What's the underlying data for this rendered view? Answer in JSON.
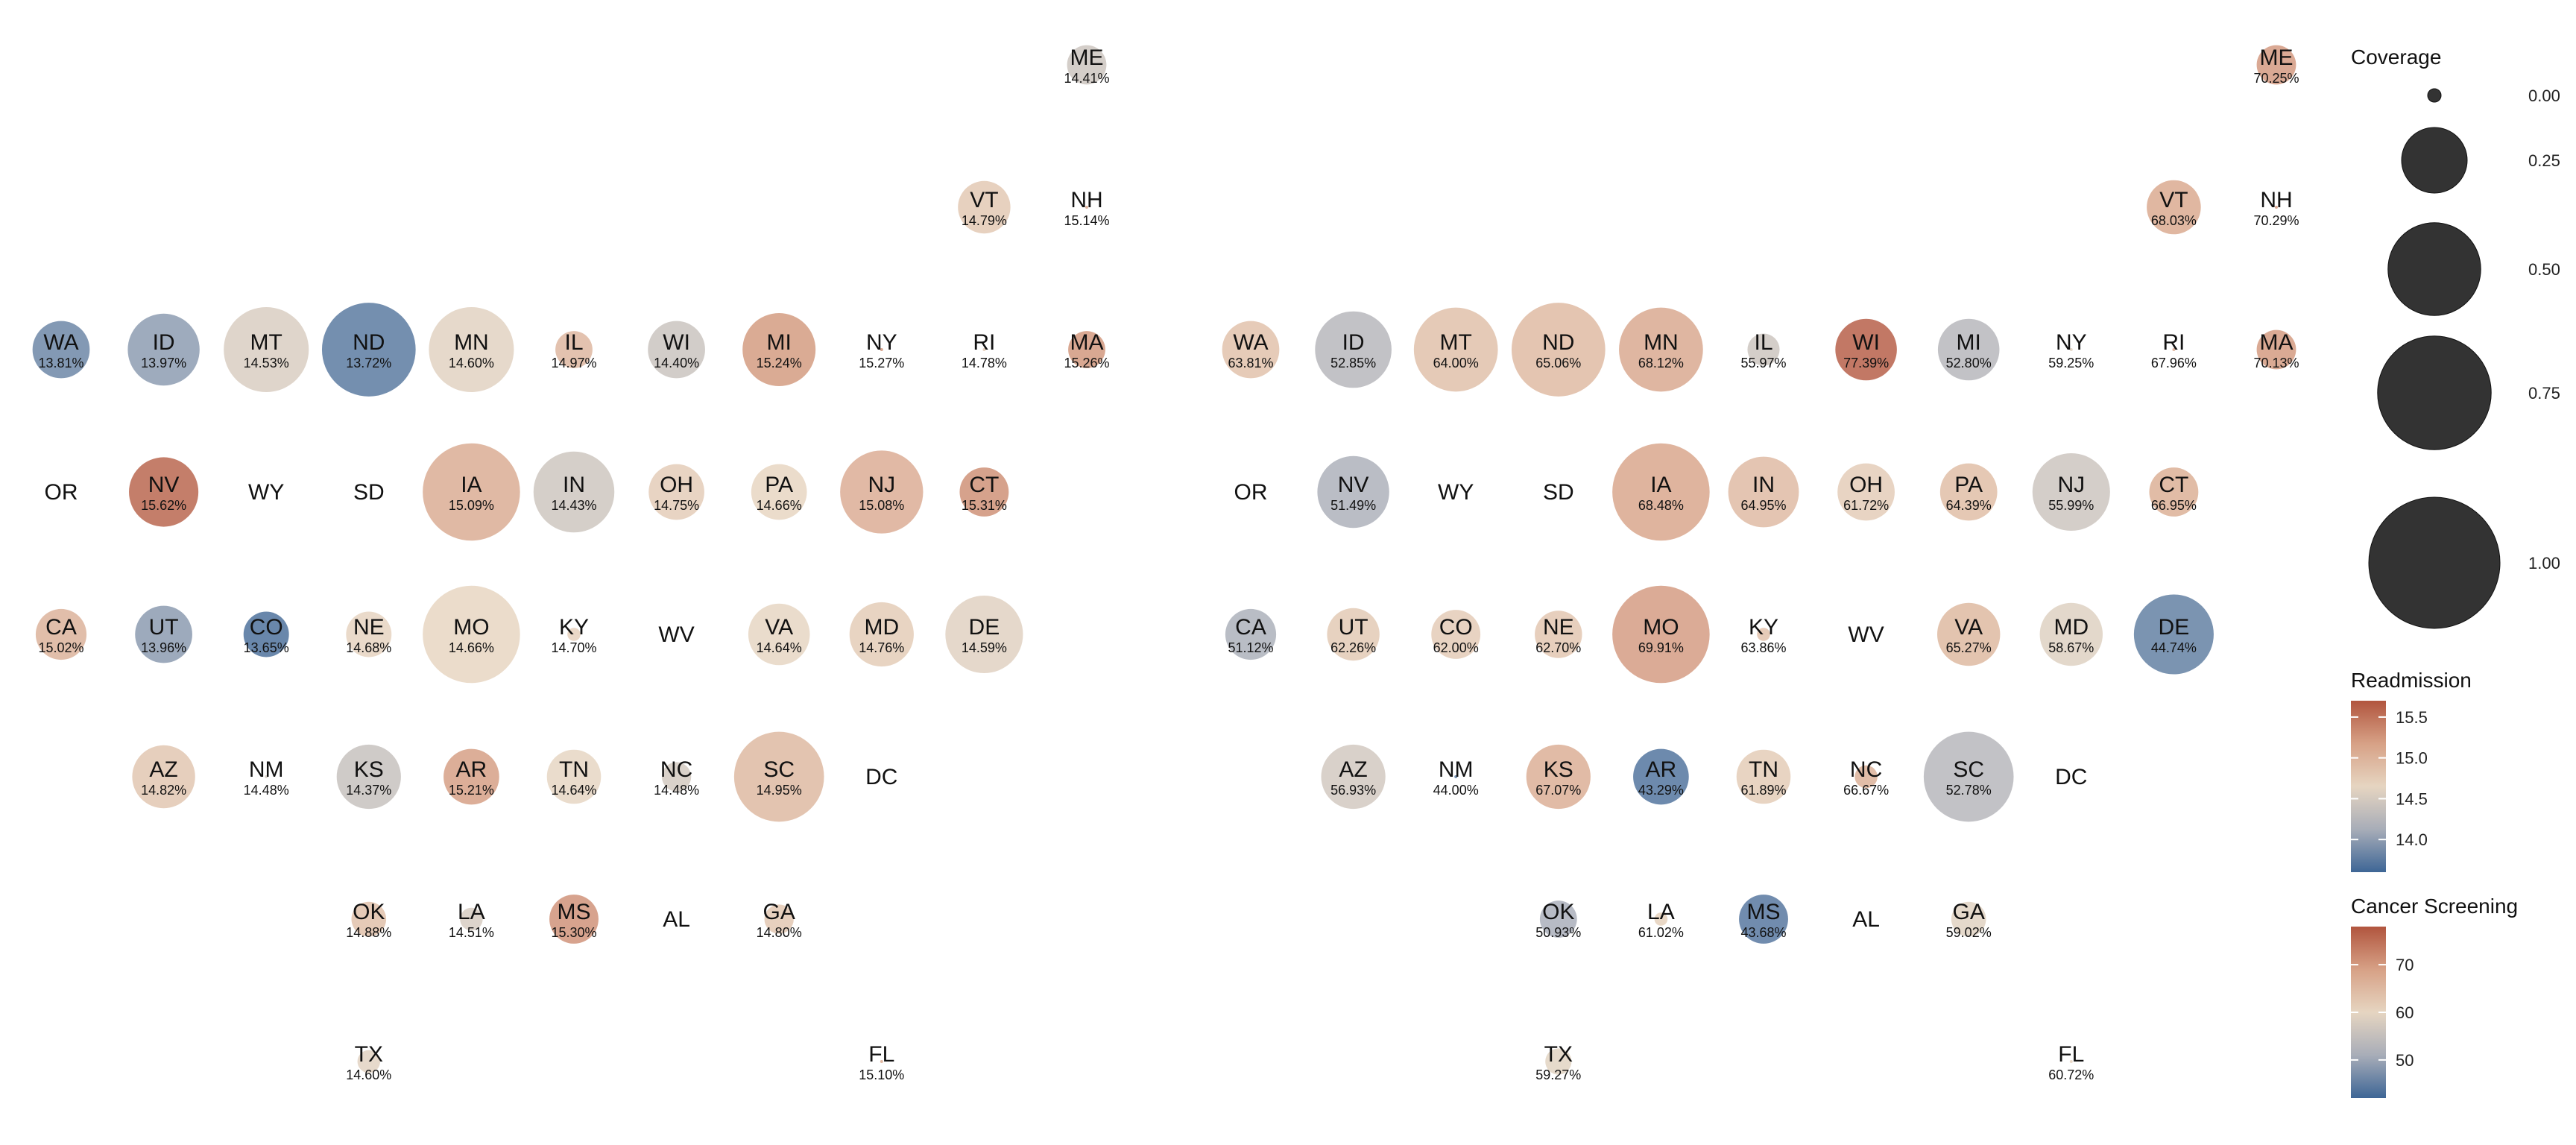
{
  "chart_data": [
    {
      "type": "bubble-grid-map",
      "name": "Readmission",
      "label_suffix": "%",
      "states": [
        {
          "abbr": "ME",
          "row": 0,
          "col": 10,
          "value": 14.41,
          "coverage": 0.09,
          "label": "14.41%"
        },
        {
          "abbr": "VT",
          "row": 1,
          "col": 9,
          "value": 14.79,
          "coverage": 0.16,
          "label": "14.79%"
        },
        {
          "abbr": "NH",
          "row": 1,
          "col": 10,
          "value": 15.14,
          "coverage": 0.0,
          "label": "15.14%"
        },
        {
          "abbr": "WA",
          "row": 2,
          "col": 0,
          "value": 13.81,
          "coverage": 0.19,
          "label": "13.81%"
        },
        {
          "abbr": "ID",
          "row": 2,
          "col": 1,
          "value": 13.97,
          "coverage": 0.3,
          "label": "13.97%"
        },
        {
          "abbr": "MT",
          "row": 2,
          "col": 2,
          "value": 14.53,
          "coverage": 0.42,
          "label": "14.53%"
        },
        {
          "abbr": "ND",
          "row": 2,
          "col": 3,
          "value": 13.72,
          "coverage": 0.51,
          "label": "13.72%"
        },
        {
          "abbr": "MN",
          "row": 2,
          "col": 4,
          "value": 14.6,
          "coverage": 0.42,
          "label": "14.60%"
        },
        {
          "abbr": "IL",
          "row": 2,
          "col": 5,
          "value": 14.97,
          "coverage": 0.08,
          "label": "14.97%"
        },
        {
          "abbr": "WI",
          "row": 2,
          "col": 6,
          "value": 14.4,
          "coverage": 0.19,
          "label": "14.40%"
        },
        {
          "abbr": "MI",
          "row": 2,
          "col": 7,
          "value": 15.24,
          "coverage": 0.31,
          "label": "15.24%"
        },
        {
          "abbr": "NY",
          "row": 2,
          "col": 8,
          "value": 15.27,
          "coverage": 0.0,
          "label": "15.27%"
        },
        {
          "abbr": "RI",
          "row": 2,
          "col": 9,
          "value": 14.78,
          "coverage": 0.0,
          "label": "14.78%"
        },
        {
          "abbr": "MA",
          "row": 2,
          "col": 10,
          "value": 15.26,
          "coverage": 0.08,
          "label": "15.26%"
        },
        {
          "abbr": "OR",
          "row": 3,
          "col": 0,
          "value": null,
          "coverage": null,
          "label": ""
        },
        {
          "abbr": "NV",
          "row": 3,
          "col": 1,
          "value": 15.62,
          "coverage": 0.28,
          "label": "15.62%"
        },
        {
          "abbr": "WY",
          "row": 3,
          "col": 2,
          "value": null,
          "coverage": null,
          "label": ""
        },
        {
          "abbr": "SD",
          "row": 3,
          "col": 3,
          "value": null,
          "coverage": null,
          "label": ""
        },
        {
          "abbr": "IA",
          "row": 3,
          "col": 4,
          "value": 15.09,
          "coverage": 0.55,
          "label": "15.09%"
        },
        {
          "abbr": "IN",
          "row": 3,
          "col": 5,
          "value": 14.43,
          "coverage": 0.38,
          "label": "14.43%"
        },
        {
          "abbr": "OH",
          "row": 3,
          "col": 6,
          "value": 14.75,
          "coverage": 0.18,
          "label": "14.75%"
        },
        {
          "abbr": "PA",
          "row": 3,
          "col": 7,
          "value": 14.66,
          "coverage": 0.18,
          "label": "14.66%"
        },
        {
          "abbr": "NJ",
          "row": 3,
          "col": 8,
          "value": 15.08,
          "coverage": 0.4,
          "label": "15.08%"
        },
        {
          "abbr": "CT",
          "row": 3,
          "col": 9,
          "value": 15.31,
          "coverage": 0.14,
          "label": "15.31%"
        },
        {
          "abbr": "CA",
          "row": 4,
          "col": 0,
          "value": 15.02,
          "coverage": 0.15,
          "label": "15.02%"
        },
        {
          "abbr": "UT",
          "row": 4,
          "col": 1,
          "value": 13.96,
          "coverage": 0.19,
          "label": "13.96%"
        },
        {
          "abbr": "CO",
          "row": 4,
          "col": 2,
          "value": 13.65,
          "coverage": 0.12,
          "label": "13.65%"
        },
        {
          "abbr": "NE",
          "row": 4,
          "col": 3,
          "value": 14.68,
          "coverage": 0.12,
          "label": "14.68%"
        },
        {
          "abbr": "MO",
          "row": 4,
          "col": 4,
          "value": 14.66,
          "coverage": 0.55,
          "label": "14.66%"
        },
        {
          "abbr": "KY",
          "row": 4,
          "col": 5,
          "value": 14.7,
          "coverage": 0.01,
          "label": "14.70%"
        },
        {
          "abbr": "WV",
          "row": 4,
          "col": 6,
          "value": null,
          "coverage": null,
          "label": ""
        },
        {
          "abbr": "VA",
          "row": 4,
          "col": 7,
          "value": 14.64,
          "coverage": 0.22,
          "label": "14.64%"
        },
        {
          "abbr": "MD",
          "row": 4,
          "col": 8,
          "value": 14.76,
          "coverage": 0.24,
          "label": "14.76%"
        },
        {
          "abbr": "DE",
          "row": 4,
          "col": 9,
          "value": 14.59,
          "coverage": 0.35,
          "label": "14.59%"
        },
        {
          "abbr": "AZ",
          "row": 5,
          "col": 1,
          "value": 14.82,
          "coverage": 0.23,
          "label": "14.82%"
        },
        {
          "abbr": "NM",
          "row": 5,
          "col": 2,
          "value": 14.48,
          "coverage": 0.0,
          "label": "14.48%"
        },
        {
          "abbr": "KS",
          "row": 5,
          "col": 3,
          "value": 14.37,
          "coverage": 0.24,
          "label": "14.37%"
        },
        {
          "abbr": "AR",
          "row": 5,
          "col": 4,
          "value": 15.21,
          "coverage": 0.18,
          "label": "15.21%"
        },
        {
          "abbr": "TN",
          "row": 5,
          "col": 5,
          "value": 14.64,
          "coverage": 0.17,
          "label": "14.64%"
        },
        {
          "abbr": "NC",
          "row": 5,
          "col": 6,
          "value": 14.48,
          "coverage": 0.05,
          "label": "14.48%"
        },
        {
          "abbr": "SC",
          "row": 5,
          "col": 7,
          "value": 14.95,
          "coverage": 0.47,
          "label": "14.95%"
        },
        {
          "abbr": "DC",
          "row": 5,
          "col": 8,
          "value": null,
          "coverage": null,
          "label": ""
        },
        {
          "abbr": "OK",
          "row": 6,
          "col": 3,
          "value": 14.88,
          "coverage": 0.07,
          "label": "14.88%"
        },
        {
          "abbr": "LA",
          "row": 6,
          "col": 4,
          "value": 14.51,
          "coverage": 0.03,
          "label": "14.51%"
        },
        {
          "abbr": "MS",
          "row": 6,
          "col": 5,
          "value": 15.3,
          "coverage": 0.14,
          "label": "15.30%"
        },
        {
          "abbr": "AL",
          "row": 6,
          "col": 6,
          "value": null,
          "coverage": null,
          "label": ""
        },
        {
          "abbr": "GA",
          "row": 6,
          "col": 7,
          "value": 14.8,
          "coverage": 0.05,
          "label": "14.80%"
        },
        {
          "abbr": "TX",
          "row": 7,
          "col": 3,
          "value": 14.6,
          "coverage": 0.03,
          "label": "14.60%"
        },
        {
          "abbr": "FL",
          "row": 7,
          "col": 8,
          "value": 15.1,
          "coverage": 0.0,
          "label": "15.10%"
        }
      ]
    },
    {
      "type": "bubble-grid-map",
      "name": "Cancer Screening",
      "label_suffix": "%",
      "states": [
        {
          "abbr": "ME",
          "row": 0,
          "col": 10,
          "value": 70.25,
          "coverage": 0.09,
          "label": "70.25%"
        },
        {
          "abbr": "VT",
          "row": 1,
          "col": 9,
          "value": 68.03,
          "coverage": 0.17,
          "label": "68.03%"
        },
        {
          "abbr": "NH",
          "row": 1,
          "col": 10,
          "value": 70.29,
          "coverage": 0.0,
          "label": "70.29%"
        },
        {
          "abbr": "WA",
          "row": 2,
          "col": 0,
          "value": 63.81,
          "coverage": 0.19,
          "label": "63.81%"
        },
        {
          "abbr": "ID",
          "row": 2,
          "col": 1,
          "value": 52.85,
          "coverage": 0.34,
          "label": "52.85%"
        },
        {
          "abbr": "MT",
          "row": 2,
          "col": 2,
          "value": 64.0,
          "coverage": 0.41,
          "label": "64.00%"
        },
        {
          "abbr": "ND",
          "row": 2,
          "col": 3,
          "value": 65.06,
          "coverage": 0.51,
          "label": "65.06%"
        },
        {
          "abbr": "MN",
          "row": 2,
          "col": 4,
          "value": 68.12,
          "coverage": 0.41,
          "label": "68.12%"
        },
        {
          "abbr": "IL",
          "row": 2,
          "col": 5,
          "value": 55.97,
          "coverage": 0.06,
          "label": "55.97%"
        },
        {
          "abbr": "WI",
          "row": 2,
          "col": 6,
          "value": 77.39,
          "coverage": 0.22,
          "label": "77.39%"
        },
        {
          "abbr": "MI",
          "row": 2,
          "col": 7,
          "value": 52.8,
          "coverage": 0.22,
          "label": "52.80%"
        },
        {
          "abbr": "NY",
          "row": 2,
          "col": 8,
          "value": 59.25,
          "coverage": 0.0,
          "label": "59.25%"
        },
        {
          "abbr": "RI",
          "row": 2,
          "col": 9,
          "value": 67.96,
          "coverage": 0.0,
          "label": "67.96%"
        },
        {
          "abbr": "MA",
          "row": 2,
          "col": 10,
          "value": 70.13,
          "coverage": 0.09,
          "label": "70.13%"
        },
        {
          "abbr": "OR",
          "row": 3,
          "col": 0,
          "value": null,
          "coverage": null,
          "label": ""
        },
        {
          "abbr": "NV",
          "row": 3,
          "col": 1,
          "value": 51.49,
          "coverage": 0.3,
          "label": "51.49%"
        },
        {
          "abbr": "WY",
          "row": 3,
          "col": 2,
          "value": null,
          "coverage": null,
          "label": ""
        },
        {
          "abbr": "SD",
          "row": 3,
          "col": 3,
          "value": null,
          "coverage": null,
          "label": ""
        },
        {
          "abbr": "IA",
          "row": 3,
          "col": 4,
          "value": 68.48,
          "coverage": 0.55,
          "label": "68.48%"
        },
        {
          "abbr": "IN",
          "row": 3,
          "col": 5,
          "value": 64.95,
          "coverage": 0.29,
          "label": "64.95%"
        },
        {
          "abbr": "OH",
          "row": 3,
          "col": 6,
          "value": 61.72,
          "coverage": 0.19,
          "label": "61.72%"
        },
        {
          "abbr": "PA",
          "row": 3,
          "col": 7,
          "value": 64.39,
          "coverage": 0.19,
          "label": "64.39%"
        },
        {
          "abbr": "NJ",
          "row": 3,
          "col": 8,
          "value": 55.99,
          "coverage": 0.35,
          "label": "55.99%"
        },
        {
          "abbr": "CT",
          "row": 3,
          "col": 9,
          "value": 66.95,
          "coverage": 0.14,
          "label": "66.95%"
        },
        {
          "abbr": "CA",
          "row": 4,
          "col": 0,
          "value": 51.12,
          "coverage": 0.15,
          "label": "51.12%"
        },
        {
          "abbr": "UT",
          "row": 4,
          "col": 1,
          "value": 62.26,
          "coverage": 0.16,
          "label": "62.26%"
        },
        {
          "abbr": "CO",
          "row": 4,
          "col": 2,
          "value": 62.0,
          "coverage": 0.14,
          "label": "62.00%"
        },
        {
          "abbr": "NE",
          "row": 4,
          "col": 3,
          "value": 62.7,
          "coverage": 0.13,
          "label": "62.70%"
        },
        {
          "abbr": "MO",
          "row": 4,
          "col": 4,
          "value": 69.91,
          "coverage": 0.55,
          "label": "69.91%"
        },
        {
          "abbr": "KY",
          "row": 4,
          "col": 5,
          "value": 63.86,
          "coverage": 0.01,
          "label": "63.86%"
        },
        {
          "abbr": "WV",
          "row": 4,
          "col": 6,
          "value": null,
          "coverage": null,
          "label": ""
        },
        {
          "abbr": "VA",
          "row": 4,
          "col": 7,
          "value": 65.27,
          "coverage": 0.23,
          "label": "65.27%"
        },
        {
          "abbr": "MD",
          "row": 4,
          "col": 8,
          "value": 58.67,
          "coverage": 0.23,
          "label": "58.67%"
        },
        {
          "abbr": "DE",
          "row": 4,
          "col": 9,
          "value": 44.74,
          "coverage": 0.37,
          "label": "44.74%"
        },
        {
          "abbr": "AZ",
          "row": 5,
          "col": 1,
          "value": 56.93,
          "coverage": 0.24,
          "label": "56.93%"
        },
        {
          "abbr": "NM",
          "row": 5,
          "col": 2,
          "value": 44.0,
          "coverage": 0.0,
          "label": "44.00%"
        },
        {
          "abbr": "KS",
          "row": 5,
          "col": 3,
          "value": 67.07,
          "coverage": 0.24,
          "label": "67.07%"
        },
        {
          "abbr": "AR",
          "row": 5,
          "col": 4,
          "value": 43.29,
          "coverage": 0.18,
          "label": "43.29%"
        },
        {
          "abbr": "TN",
          "row": 5,
          "col": 5,
          "value": 61.89,
          "coverage": 0.17,
          "label": "61.89%"
        },
        {
          "abbr": "NC",
          "row": 5,
          "col": 6,
          "value": 66.67,
          "coverage": 0.03,
          "label": "66.67%"
        },
        {
          "abbr": "SC",
          "row": 5,
          "col": 7,
          "value": 52.78,
          "coverage": 0.47,
          "label": "52.78%"
        },
        {
          "abbr": "DC",
          "row": 5,
          "col": 8,
          "value": null,
          "coverage": null,
          "label": ""
        },
        {
          "abbr": "OK",
          "row": 6,
          "col": 3,
          "value": 50.93,
          "coverage": 0.08,
          "label": "50.93%"
        },
        {
          "abbr": "LA",
          "row": 6,
          "col": 4,
          "value": 61.02,
          "coverage": 0.01,
          "label": "61.02%"
        },
        {
          "abbr": "MS",
          "row": 6,
          "col": 5,
          "value": 43.68,
          "coverage": 0.14,
          "label": "43.68%"
        },
        {
          "abbr": "AL",
          "row": 6,
          "col": 6,
          "value": null,
          "coverage": null,
          "label": ""
        },
        {
          "abbr": "GA",
          "row": 6,
          "col": 7,
          "value": 59.02,
          "coverage": 0.07,
          "label": "59.02%"
        },
        {
          "abbr": "TX",
          "row": 7,
          "col": 3,
          "value": 59.27,
          "coverage": 0.04,
          "label": "59.27%"
        },
        {
          "abbr": "FL",
          "row": 7,
          "col": 8,
          "value": 60.72,
          "coverage": 0.0,
          "label": "60.72%"
        }
      ]
    }
  ],
  "legend": {
    "coverage": {
      "title": "Coverage",
      "breaks": [
        0.0,
        0.25,
        0.5,
        0.75,
        1.0
      ],
      "labels": [
        "0.00",
        "0.25",
        "0.50",
        "0.75",
        "1.00"
      ]
    },
    "readmission": {
      "title": "Readmission",
      "domain": [
        13.6,
        15.7
      ],
      "breaks": [
        15.5,
        15.0,
        14.5,
        14.0
      ],
      "labels": [
        "15.5",
        "15.0",
        "14.5",
        "14.0"
      ]
    },
    "screening": {
      "title": "Cancer Screening",
      "domain": [
        42,
        78
      ],
      "breaks": [
        70,
        60,
        50
      ],
      "labels": [
        "70",
        "60",
        "50"
      ]
    }
  },
  "colors": {
    "low": "#3e6696",
    "mid_low": "#a8adb8",
    "mid": "#e6d5c1",
    "mid_high": "#d7a186",
    "high": "#b1553e",
    "bubble_opacity": 0.82,
    "legend_bubble": "#333333"
  }
}
